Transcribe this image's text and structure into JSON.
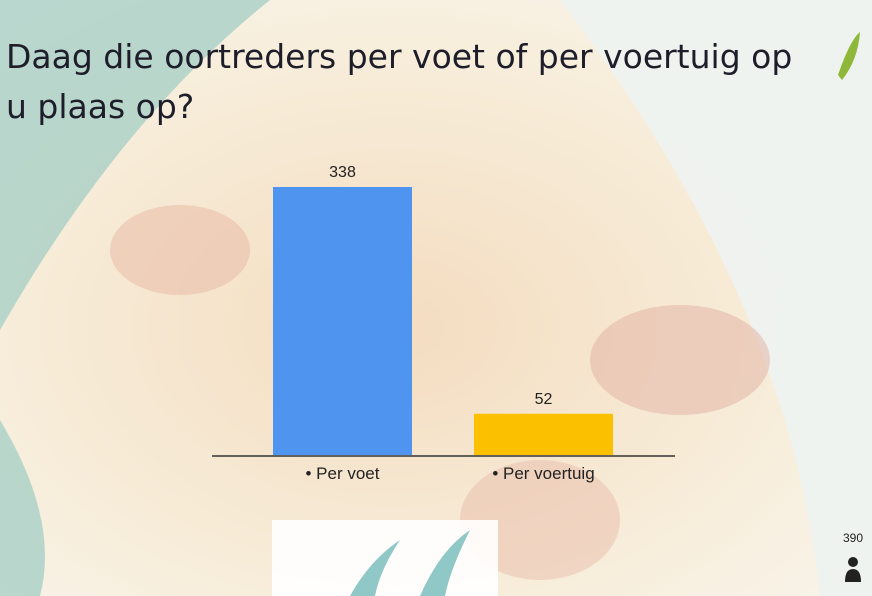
{
  "chart_data": {
    "type": "bar",
    "title_lines": [
      "Daag die oortreders per voet of per voertuig op",
      "u plaas op?"
    ],
    "categories": [
      "• Per voet",
      "• Per voertuig"
    ],
    "values": [
      338,
      52
    ],
    "colors": [
      "#4f94ef",
      "#fbc000"
    ],
    "responses": 390
  }
}
